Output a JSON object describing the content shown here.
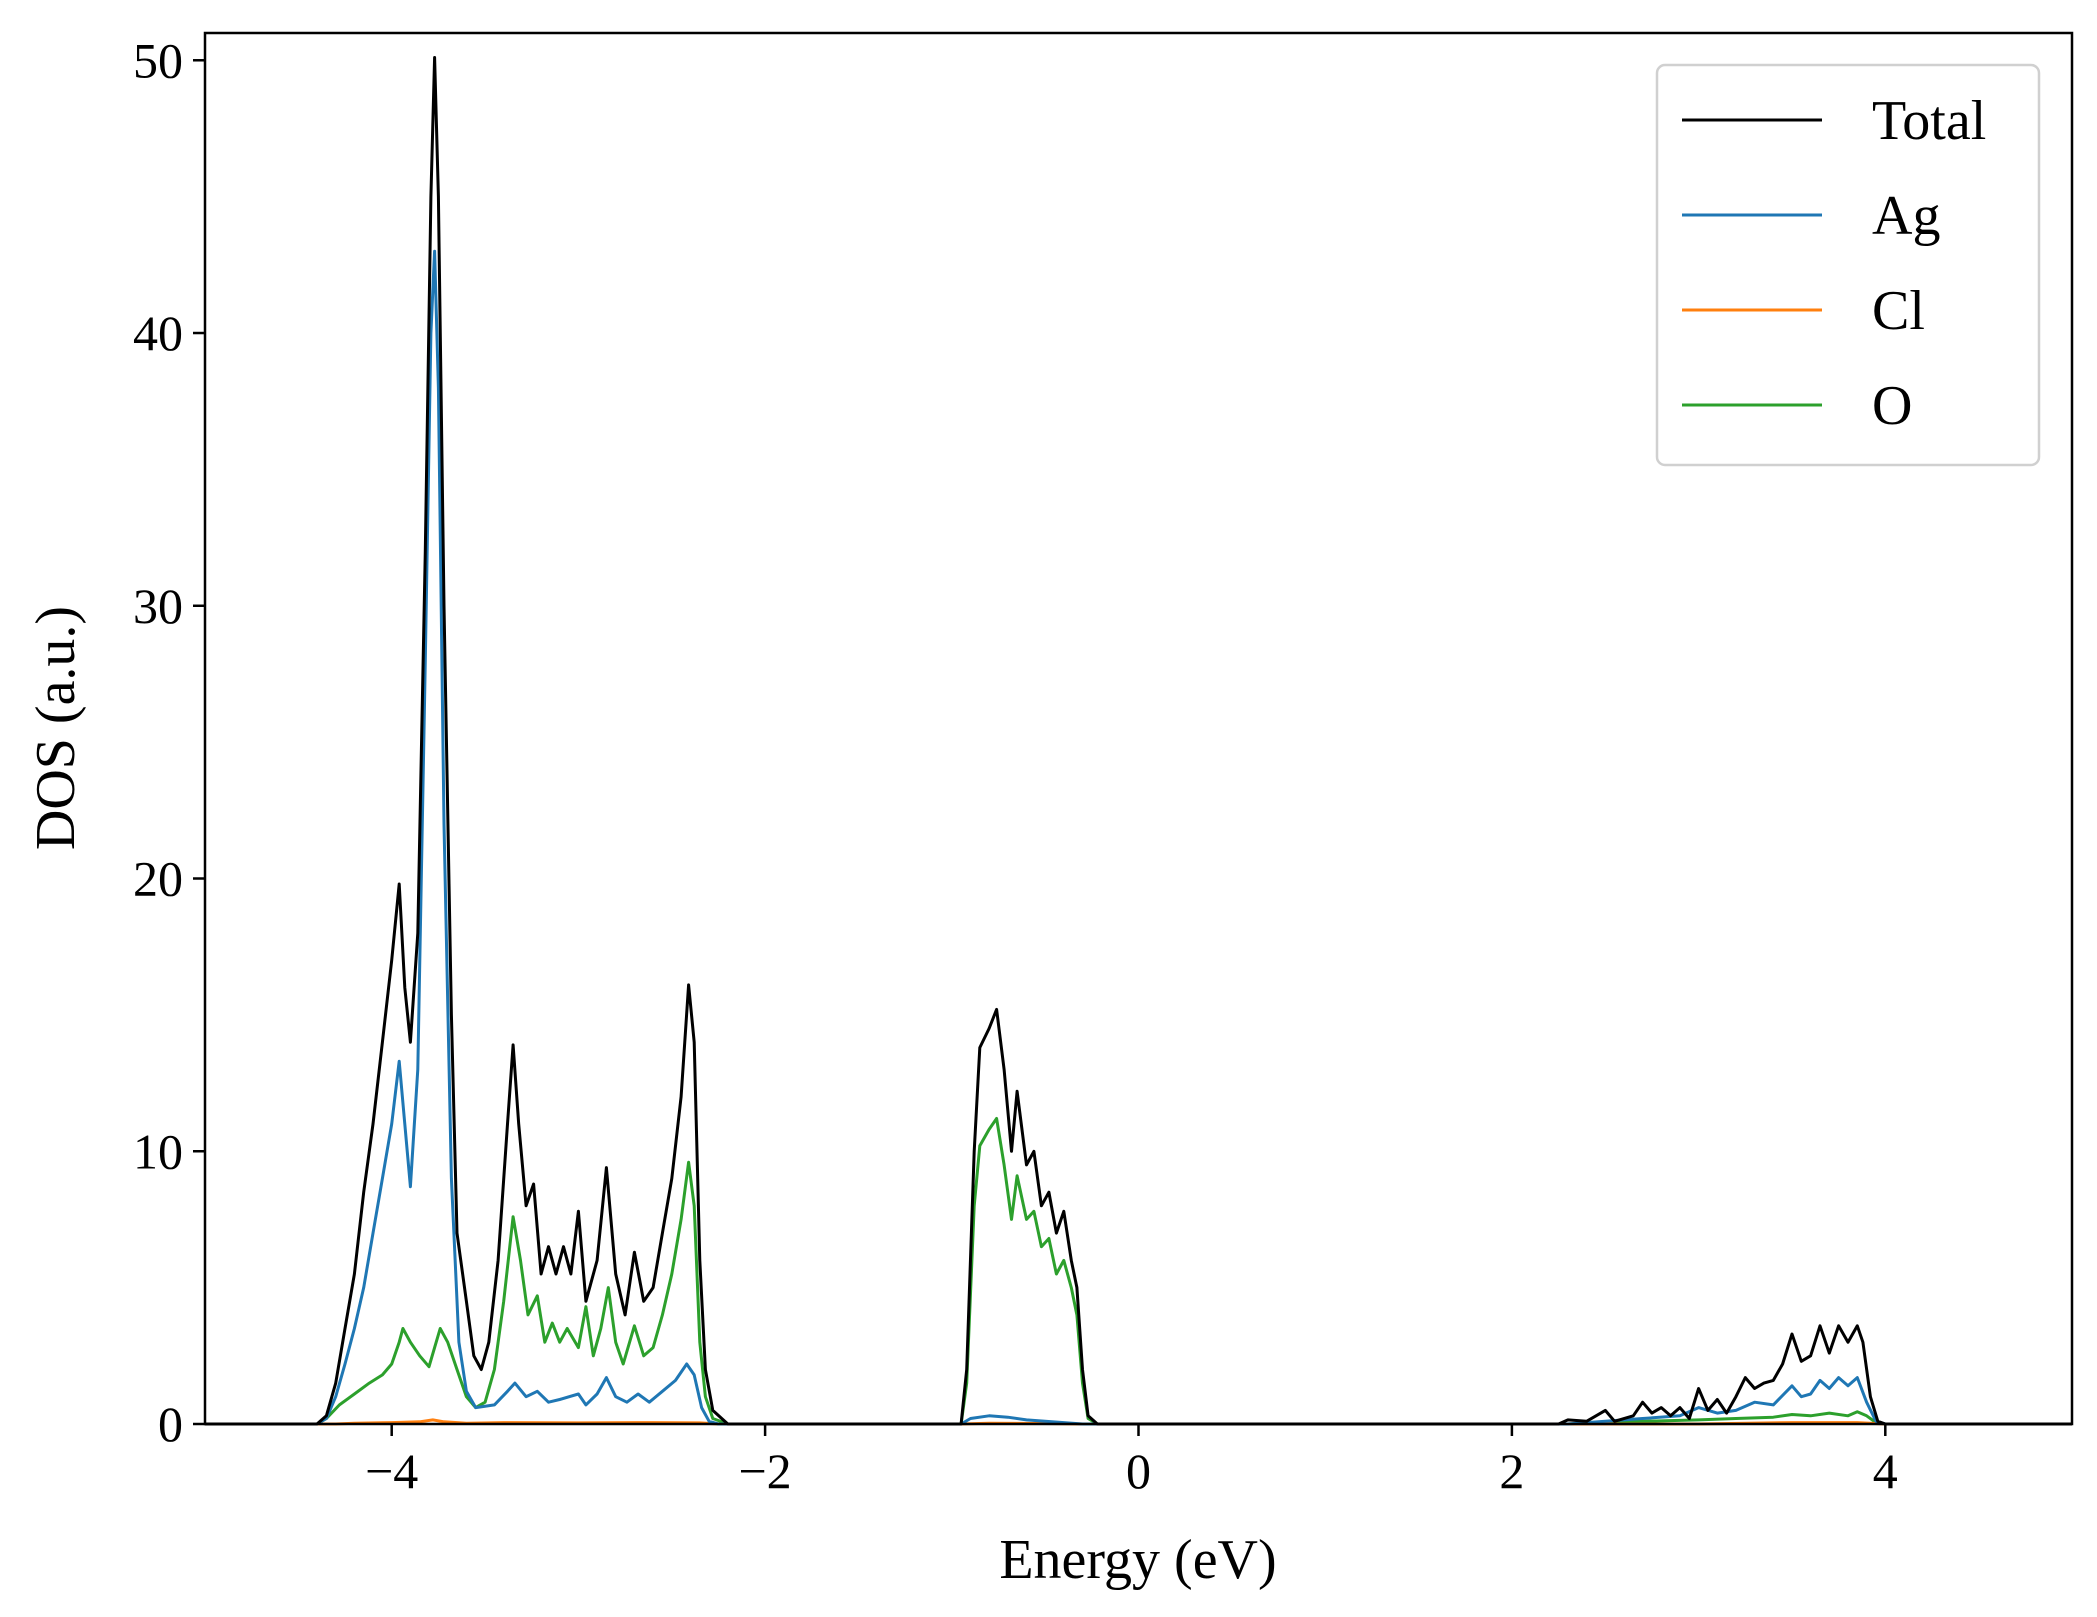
{
  "chart_data": {
    "type": "line",
    "title": "",
    "xlabel": "Energy (eV)",
    "ylabel": "DOS (a.u.)",
    "xlim": [
      -5,
      5
    ],
    "ylim": [
      0,
      51
    ],
    "xticks": [
      -4,
      -2,
      0,
      2,
      4
    ],
    "xtick_labels": [
      "−4",
      "−2",
      "0",
      "2",
      "4"
    ],
    "yticks": [
      0,
      10,
      20,
      30,
      40,
      50
    ],
    "ytick_labels": [
      "0",
      "10",
      "20",
      "30",
      "40",
      "50"
    ],
    "grid": false,
    "legend_position": "top-right",
    "series": [
      {
        "name": "Total",
        "color": "#000000",
        "points": [
          [
            -5,
            0
          ],
          [
            -4.4,
            0
          ],
          [
            -4.35,
            0.3
          ],
          [
            -4.3,
            1.5
          ],
          [
            -4.25,
            3.5
          ],
          [
            -4.2,
            5.5
          ],
          [
            -4.15,
            8.5
          ],
          [
            -4.1,
            11
          ],
          [
            -4.05,
            14
          ],
          [
            -4.0,
            17
          ],
          [
            -3.96,
            19.8
          ],
          [
            -3.93,
            16
          ],
          [
            -3.9,
            14
          ],
          [
            -3.86,
            18
          ],
          [
            -3.82,
            32
          ],
          [
            -3.79,
            45
          ],
          [
            -3.77,
            50.1
          ],
          [
            -3.75,
            45
          ],
          [
            -3.72,
            30
          ],
          [
            -3.68,
            15
          ],
          [
            -3.65,
            7
          ],
          [
            -3.6,
            4.5
          ],
          [
            -3.56,
            2.5
          ],
          [
            -3.52,
            2
          ],
          [
            -3.48,
            3
          ],
          [
            -3.43,
            6
          ],
          [
            -3.38,
            11
          ],
          [
            -3.35,
            13.9
          ],
          [
            -3.32,
            11
          ],
          [
            -3.28,
            8
          ],
          [
            -3.24,
            8.8
          ],
          [
            -3.2,
            5.5
          ],
          [
            -3.16,
            6.5
          ],
          [
            -3.12,
            5.5
          ],
          [
            -3.08,
            6.5
          ],
          [
            -3.04,
            5.5
          ],
          [
            -3.0,
            7.8
          ],
          [
            -2.96,
            4.5
          ],
          [
            -2.9,
            6
          ],
          [
            -2.85,
            9.4
          ],
          [
            -2.8,
            5.5
          ],
          [
            -2.75,
            4
          ],
          [
            -2.7,
            6.3
          ],
          [
            -2.65,
            4.5
          ],
          [
            -2.6,
            5
          ],
          [
            -2.55,
            7
          ],
          [
            -2.5,
            9
          ],
          [
            -2.45,
            12
          ],
          [
            -2.41,
            16.1
          ],
          [
            -2.38,
            14
          ],
          [
            -2.35,
            6
          ],
          [
            -2.32,
            2
          ],
          [
            -2.28,
            0.5
          ],
          [
            -2.2,
            0
          ],
          [
            -0.95,
            0
          ],
          [
            -0.92,
            2
          ],
          [
            -0.88,
            10
          ],
          [
            -0.85,
            13.8
          ],
          [
            -0.8,
            14.5
          ],
          [
            -0.76,
            15.2
          ],
          [
            -0.72,
            13
          ],
          [
            -0.68,
            10
          ],
          [
            -0.65,
            12.2
          ],
          [
            -0.6,
            9.5
          ],
          [
            -0.56,
            10
          ],
          [
            -0.52,
            8
          ],
          [
            -0.48,
            8.5
          ],
          [
            -0.44,
            7
          ],
          [
            -0.4,
            7.8
          ],
          [
            -0.36,
            6
          ],
          [
            -0.33,
            5
          ],
          [
            -0.3,
            2
          ],
          [
            -0.27,
            0.3
          ],
          [
            -0.22,
            0
          ],
          [
            2.25,
            0
          ],
          [
            2.3,
            0.15
          ],
          [
            2.4,
            0.1
          ],
          [
            2.5,
            0.5
          ],
          [
            2.55,
            0.1
          ],
          [
            2.65,
            0.3
          ],
          [
            2.7,
            0.8
          ],
          [
            2.75,
            0.4
          ],
          [
            2.8,
            0.6
          ],
          [
            2.85,
            0.3
          ],
          [
            2.9,
            0.6
          ],
          [
            2.95,
            0.2
          ],
          [
            3.0,
            1.3
          ],
          [
            3.05,
            0.5
          ],
          [
            3.1,
            0.9
          ],
          [
            3.15,
            0.4
          ],
          [
            3.2,
            1
          ],
          [
            3.25,
            1.7
          ],
          [
            3.3,
            1.3
          ],
          [
            3.35,
            1.5
          ],
          [
            3.4,
            1.6
          ],
          [
            3.45,
            2.2
          ],
          [
            3.5,
            3.3
          ],
          [
            3.55,
            2.3
          ],
          [
            3.6,
            2.5
          ],
          [
            3.65,
            3.6
          ],
          [
            3.7,
            2.6
          ],
          [
            3.75,
            3.6
          ],
          [
            3.8,
            3
          ],
          [
            3.85,
            3.6
          ],
          [
            3.88,
            3
          ],
          [
            3.92,
            1
          ],
          [
            3.96,
            0.1
          ],
          [
            4.0,
            0
          ],
          [
            5,
            0
          ]
        ]
      },
      {
        "name": "Ag",
        "color": "#1f77b4",
        "points": [
          [
            -5,
            0
          ],
          [
            -4.4,
            0
          ],
          [
            -4.35,
            0.2
          ],
          [
            -4.3,
            1
          ],
          [
            -4.25,
            2.2
          ],
          [
            -4.2,
            3.5
          ],
          [
            -4.15,
            5
          ],
          [
            -4.1,
            7
          ],
          [
            -4.05,
            9
          ],
          [
            -4.0,
            11
          ],
          [
            -3.96,
            13.3
          ],
          [
            -3.93,
            11
          ],
          [
            -3.9,
            8.7
          ],
          [
            -3.86,
            13
          ],
          [
            -3.82,
            28
          ],
          [
            -3.79,
            40
          ],
          [
            -3.77,
            43
          ],
          [
            -3.75,
            38
          ],
          [
            -3.72,
            22
          ],
          [
            -3.68,
            9
          ],
          [
            -3.64,
            3
          ],
          [
            -3.6,
            1.2
          ],
          [
            -3.55,
            0.6
          ],
          [
            -3.45,
            0.7
          ],
          [
            -3.38,
            1.2
          ],
          [
            -3.34,
            1.5
          ],
          [
            -3.28,
            1
          ],
          [
            -3.22,
            1.2
          ],
          [
            -3.16,
            0.8
          ],
          [
            -3.1,
            0.9
          ],
          [
            -3.0,
            1.1
          ],
          [
            -2.96,
            0.7
          ],
          [
            -2.9,
            1.1
          ],
          [
            -2.85,
            1.7
          ],
          [
            -2.8,
            1
          ],
          [
            -2.74,
            0.8
          ],
          [
            -2.68,
            1.1
          ],
          [
            -2.62,
            0.8
          ],
          [
            -2.55,
            1.2
          ],
          [
            -2.48,
            1.6
          ],
          [
            -2.42,
            2.2
          ],
          [
            -2.38,
            1.8
          ],
          [
            -2.34,
            0.6
          ],
          [
            -2.3,
            0.1
          ],
          [
            -2.25,
            0
          ],
          [
            -0.95,
            0
          ],
          [
            -0.9,
            0.2
          ],
          [
            -0.8,
            0.3
          ],
          [
            -0.7,
            0.25
          ],
          [
            -0.6,
            0.15
          ],
          [
            -0.5,
            0.1
          ],
          [
            -0.4,
            0.05
          ],
          [
            -0.3,
            0
          ],
          [
            2.3,
            0
          ],
          [
            2.5,
            0.1
          ],
          [
            2.7,
            0.2
          ],
          [
            2.9,
            0.3
          ],
          [
            3.0,
            0.6
          ],
          [
            3.1,
            0.4
          ],
          [
            3.2,
            0.5
          ],
          [
            3.3,
            0.8
          ],
          [
            3.4,
            0.7
          ],
          [
            3.5,
            1.4
          ],
          [
            3.55,
            1
          ],
          [
            3.6,
            1.1
          ],
          [
            3.65,
            1.6
          ],
          [
            3.7,
            1.3
          ],
          [
            3.75,
            1.7
          ],
          [
            3.8,
            1.4
          ],
          [
            3.85,
            1.7
          ],
          [
            3.9,
            0.8
          ],
          [
            3.95,
            0.1
          ],
          [
            4.0,
            0
          ],
          [
            5,
            0
          ]
        ]
      },
      {
        "name": "Cl",
        "color": "#ff7f0e",
        "points": [
          [
            -5,
            0
          ],
          [
            -4.3,
            0
          ],
          [
            -4.2,
            0.03
          ],
          [
            -4.0,
            0.05
          ],
          [
            -3.85,
            0.08
          ],
          [
            -3.78,
            0.15
          ],
          [
            -3.72,
            0.08
          ],
          [
            -3.6,
            0.03
          ],
          [
            -3.4,
            0.05
          ],
          [
            -3.0,
            0.04
          ],
          [
            -2.6,
            0.05
          ],
          [
            -2.35,
            0.04
          ],
          [
            -2.25,
            0
          ],
          [
            -0.95,
            0
          ],
          [
            -0.8,
            0.03
          ],
          [
            -0.5,
            0.02
          ],
          [
            -0.3,
            0
          ],
          [
            3.0,
            0
          ],
          [
            3.5,
            0.05
          ],
          [
            3.85,
            0.05
          ],
          [
            4.0,
            0
          ],
          [
            5,
            0
          ]
        ]
      },
      {
        "name": "O",
        "color": "#2ca02c",
        "points": [
          [
            -5,
            0
          ],
          [
            -4.4,
            0
          ],
          [
            -4.35,
            0.2
          ],
          [
            -4.28,
            0.7
          ],
          [
            -4.2,
            1.1
          ],
          [
            -4.12,
            1.5
          ],
          [
            -4.05,
            1.8
          ],
          [
            -4.0,
            2.2
          ],
          [
            -3.96,
            3
          ],
          [
            -3.94,
            3.5
          ],
          [
            -3.9,
            3
          ],
          [
            -3.85,
            2.5
          ],
          [
            -3.8,
            2.1
          ],
          [
            -3.77,
            2.8
          ],
          [
            -3.74,
            3.5
          ],
          [
            -3.7,
            3
          ],
          [
            -3.65,
            2
          ],
          [
            -3.6,
            1
          ],
          [
            -3.55,
            0.6
          ],
          [
            -3.5,
            0.8
          ],
          [
            -3.45,
            2
          ],
          [
            -3.4,
            4.5
          ],
          [
            -3.35,
            7.6
          ],
          [
            -3.31,
            6
          ],
          [
            -3.27,
            4
          ],
          [
            -3.22,
            4.7
          ],
          [
            -3.18,
            3
          ],
          [
            -3.14,
            3.7
          ],
          [
            -3.1,
            3
          ],
          [
            -3.06,
            3.5
          ],
          [
            -3.0,
            2.8
          ],
          [
            -2.96,
            4.3
          ],
          [
            -2.92,
            2.5
          ],
          [
            -2.88,
            3.5
          ],
          [
            -2.84,
            5
          ],
          [
            -2.8,
            3
          ],
          [
            -2.76,
            2.2
          ],
          [
            -2.7,
            3.6
          ],
          [
            -2.65,
            2.5
          ],
          [
            -2.6,
            2.8
          ],
          [
            -2.55,
            4
          ],
          [
            -2.5,
            5.5
          ],
          [
            -2.45,
            7.5
          ],
          [
            -2.41,
            9.6
          ],
          [
            -2.38,
            8
          ],
          [
            -2.35,
            3
          ],
          [
            -2.32,
            1
          ],
          [
            -2.28,
            0.2
          ],
          [
            -2.2,
            0
          ],
          [
            -0.95,
            0
          ],
          [
            -0.92,
            1.5
          ],
          [
            -0.88,
            8
          ],
          [
            -0.85,
            10.2
          ],
          [
            -0.8,
            10.8
          ],
          [
            -0.76,
            11.2
          ],
          [
            -0.72,
            9.5
          ],
          [
            -0.68,
            7.5
          ],
          [
            -0.65,
            9.1
          ],
          [
            -0.6,
            7.5
          ],
          [
            -0.56,
            7.8
          ],
          [
            -0.52,
            6.5
          ],
          [
            -0.48,
            6.8
          ],
          [
            -0.44,
            5.5
          ],
          [
            -0.4,
            6
          ],
          [
            -0.36,
            5
          ],
          [
            -0.33,
            4
          ],
          [
            -0.3,
            1.5
          ],
          [
            -0.27,
            0.2
          ],
          [
            -0.22,
            0
          ],
          [
            2.3,
            0
          ],
          [
            2.5,
            0.05
          ],
          [
            2.7,
            0.1
          ],
          [
            3.0,
            0.15
          ],
          [
            3.2,
            0.2
          ],
          [
            3.4,
            0.25
          ],
          [
            3.5,
            0.35
          ],
          [
            3.6,
            0.3
          ],
          [
            3.7,
            0.4
          ],
          [
            3.8,
            0.3
          ],
          [
            3.85,
            0.45
          ],
          [
            3.9,
            0.3
          ],
          [
            3.95,
            0.05
          ],
          [
            4.0,
            0
          ],
          [
            5,
            0
          ]
        ]
      }
    ]
  }
}
